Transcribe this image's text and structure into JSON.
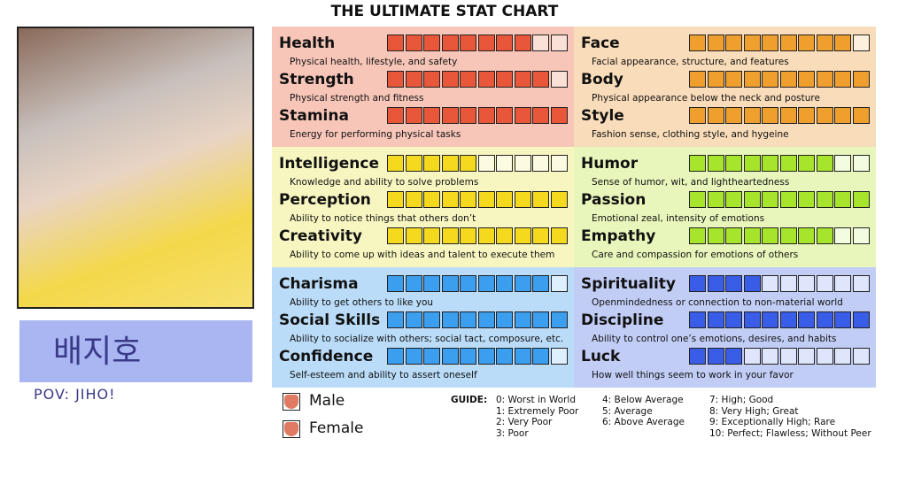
{
  "header": {
    "title": "THE ULTIMATE STAT CHART"
  },
  "profile": {
    "name": "배지호",
    "caption": "POV: JIHO!"
  },
  "groups": [
    {
      "background": "#f7c6b9",
      "fill": "#e9573b",
      "empty": "#fbe0d8",
      "stats": [
        {
          "name": "Health",
          "description": "Physical health, lifestyle, and safety",
          "value": 8
        },
        {
          "name": "Strength",
          "description": "Physical strength and fitness",
          "value": 9
        },
        {
          "name": "Stamina",
          "description": "Energy for performing physical tasks",
          "value": 10
        }
      ]
    },
    {
      "background": "#f9dcb9",
      "fill": "#ef9f2e",
      "empty": "#fdf0de",
      "stats": [
        {
          "name": "Face",
          "description": "Facial appearance, structure, and features",
          "value": 9
        },
        {
          "name": "Body",
          "description": "Physical appearance below the neck and posture",
          "value": 10
        },
        {
          "name": "Style",
          "description": "Fashion sense, clothing style, and hygeine",
          "value": 10
        }
      ]
    },
    {
      "background": "#f7f6c1",
      "fill": "#f4d91f",
      "empty": "#fcfbe2",
      "stats": [
        {
          "name": "Intelligence",
          "description": "Knowledge and ability to solve problems",
          "value": 5
        },
        {
          "name": "Perception",
          "description": "Ability to notice things that others don’t",
          "value": 10
        },
        {
          "name": "Creativity",
          "description": "Ability to come up with ideas and talent to execute them",
          "value": 10
        }
      ]
    },
    {
      "background": "#e8f6bb",
      "fill": "#a6e52b",
      "empty": "#f3fbe0",
      "stats": [
        {
          "name": "Humor",
          "description": "Sense of humor, wit, and lightheartedness",
          "value": 8
        },
        {
          "name": "Passion",
          "description": "Emotional zeal, intensity of emotions",
          "value": 10
        },
        {
          "name": "Empathy",
          "description": "Care and compassion for emotions of others",
          "value": 8
        }
      ]
    },
    {
      "background": "#badcf8",
      "fill": "#3b9eef",
      "empty": "#def0fd",
      "stats": [
        {
          "name": "Charisma",
          "description": "Ability to get others to like you",
          "value": 9
        },
        {
          "name": "Social Skills",
          "description": "Ability to socialize with others; social tact, composure, etc.",
          "value": 10
        },
        {
          "name": "Confidence",
          "description": "Self-esteem and ability to assert oneself",
          "value": 9
        }
      ]
    },
    {
      "background": "#c2cdf6",
      "fill": "#3a5de7",
      "empty": "#dfe5fb",
      "stats": [
        {
          "name": "Spirituality",
          "description": "Openmindedness or connection to non-material world",
          "value": 4
        },
        {
          "name": "Discipline",
          "description": "Ability to control one’s emotions, desires, and habits",
          "value": 10
        },
        {
          "name": "Luck",
          "description": "How well things seem to work in your favor",
          "value": 3
        }
      ]
    }
  ],
  "gender": [
    "Male",
    "Female"
  ],
  "guide": {
    "heading": "GUIDE:",
    "items": [
      "0: Worst in World",
      "1: Extremely Poor",
      "2: Very Poor",
      "3: Poor",
      "4: Below Average",
      "5: Average",
      "6: Above Average",
      "7: High; Good",
      "8: Very High; Great",
      "9: Exceptionally High; Rare",
      "10: Perfect; Flawless; Without Peer"
    ]
  }
}
